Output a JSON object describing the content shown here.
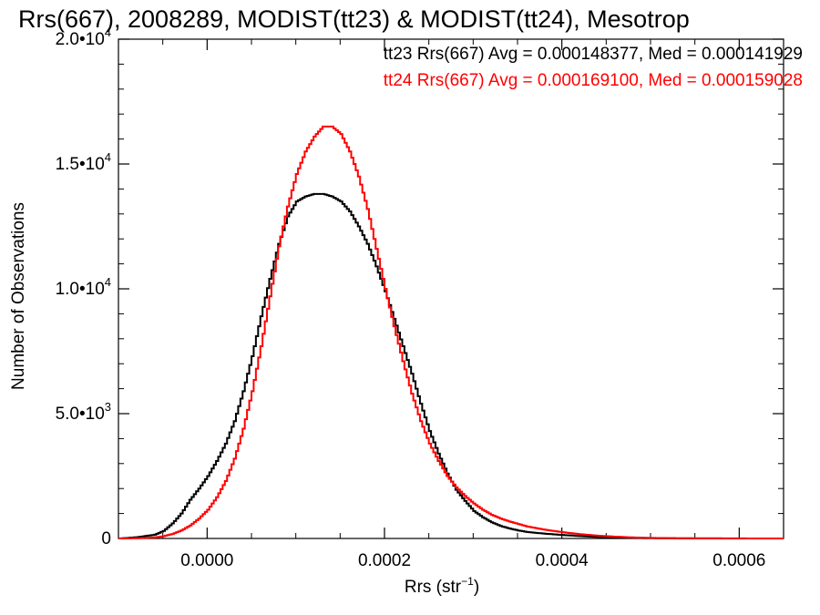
{
  "chart_data": {
    "type": "histogram-step",
    "title": "Rrs(667), 2008289, MODIST(tt23) & MODIST(tt24), Mesotrop",
    "xlabel": "Rrs (str",
    "xlabel_sup": "−1",
    "xlabel_end": ")",
    "ylabel": "Number of Observations",
    "xlim": [
      -0.0001,
      0.00065
    ],
    "ylim": [
      0,
      20000
    ],
    "x_ticks": [
      {
        "value": 0.0,
        "label": "0.0000"
      },
      {
        "value": 0.0002,
        "label": "0.0002"
      },
      {
        "value": 0.0004,
        "label": "0.0004"
      },
      {
        "value": 0.0006,
        "label": "0.0006"
      }
    ],
    "y_ticks": [
      {
        "value": 0,
        "mant": "0",
        "exp": ""
      },
      {
        "value": 5000,
        "mant": "5.0•10",
        "exp": "3"
      },
      {
        "value": 10000,
        "mant": "1.0•10",
        "exp": "4"
      },
      {
        "value": 15000,
        "mant": "1.5•10",
        "exp": "4"
      },
      {
        "value": 20000,
        "mant": "2.0•10",
        "exp": "4"
      }
    ],
    "legend": [
      {
        "text": "tt23 Rrs(667) Avg = 0.000148377, Med = 0.000141929",
        "color": "#000000"
      },
      {
        "text": "tt24 Rrs(667) Avg = 0.000169100, Med = 0.000159028",
        "color": "#ff0000"
      }
    ],
    "series": [
      {
        "name": "tt23",
        "color": "#000000",
        "x": [
          -0.0001,
          -8e-05,
          -6e-05,
          -5e-05,
          -4e-05,
          -3e-05,
          -2e-05,
          -1e-05,
          0.0,
          1e-05,
          2e-05,
          3e-05,
          4e-05,
          5e-05,
          6e-05,
          7e-05,
          8e-05,
          9e-05,
          0.0001,
          0.00011,
          0.00012,
          0.00013,
          0.00014,
          0.00015,
          0.00016,
          0.00017,
          0.00018,
          0.00019,
          0.0002,
          0.00021,
          0.00022,
          0.00023,
          0.00024,
          0.00025,
          0.00026,
          0.00027,
          0.00028,
          0.00029,
          0.0003,
          0.00031,
          0.00032,
          0.00033,
          0.00034,
          0.00035,
          0.00036,
          0.00038,
          0.0004,
          0.00042,
          0.00044,
          0.00046,
          0.00048,
          0.0005,
          0.00053,
          0.00056,
          0.00065
        ],
        "y": [
          0,
          50,
          150,
          300,
          600,
          1000,
          1550,
          2000,
          2500,
          3100,
          3800,
          4700,
          5900,
          7300,
          8900,
          10400,
          11800,
          12900,
          13500,
          13700,
          13800,
          13800,
          13700,
          13500,
          13100,
          12500,
          11800,
          10900,
          9900,
          8800,
          7700,
          6600,
          5400,
          4300,
          3400,
          2600,
          1950,
          1500,
          1100,
          850,
          650,
          500,
          400,
          320,
          260,
          190,
          140,
          95,
          60,
          35,
          20,
          12,
          6,
          3,
          0
        ]
      },
      {
        "name": "tt24",
        "color": "#ff0000",
        "x": [
          -0.0001,
          -8e-05,
          -6e-05,
          -5e-05,
          -4e-05,
          -3e-05,
          -2e-05,
          -1e-05,
          0.0,
          1e-05,
          2e-05,
          3e-05,
          4e-05,
          5e-05,
          6e-05,
          7e-05,
          8e-05,
          9e-05,
          0.0001,
          0.00011,
          0.00012,
          0.00013,
          0.00014,
          0.00015,
          0.00016,
          0.00017,
          0.00018,
          0.00019,
          0.0002,
          0.00021,
          0.00022,
          0.00023,
          0.00024,
          0.00025,
          0.00026,
          0.00027,
          0.00028,
          0.00029,
          0.0003,
          0.00031,
          0.00032,
          0.00033,
          0.00034,
          0.00035,
          0.00036,
          0.00038,
          0.0004,
          0.00042,
          0.00044,
          0.00046,
          0.00048,
          0.0005,
          0.00053,
          0.00056,
          0.00065
        ],
        "y": [
          0,
          10,
          40,
          90,
          180,
          320,
          520,
          800,
          1150,
          1650,
          2300,
          3200,
          4400,
          5900,
          7700,
          9700,
          11700,
          13300,
          14600,
          15500,
          16100,
          16500,
          16500,
          16200,
          15500,
          14500,
          13200,
          11600,
          10000,
          8500,
          7100,
          5800,
          4700,
          3800,
          3100,
          2500,
          2050,
          1700,
          1400,
          1150,
          950,
          800,
          680,
          580,
          480,
          350,
          250,
          170,
          110,
          70,
          40,
          22,
          10,
          5,
          0
        ]
      }
    ]
  }
}
